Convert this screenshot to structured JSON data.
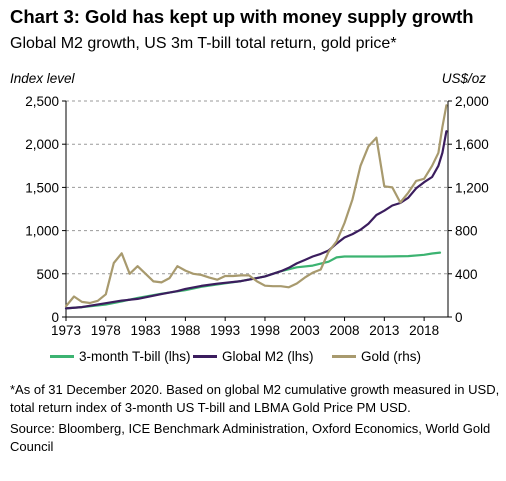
{
  "header": {
    "title": "Chart 3: Gold has kept up with money supply growth",
    "subtitle": "Global M2 growth, US 3m T-bill total return, gold price*"
  },
  "footer": {
    "footnote": "*As of 31 December 2020. Based on global M2 cumulative growth measured in USD, total return index of 3-month US T-bill and LBMA Gold Price PM USD.",
    "source": "Source: Bloomberg, ICE Benchmark Administration, Oxford Economics, World Gold Council"
  },
  "chart_data": {
    "type": "line",
    "title": "Chart 3: Gold has kept up with money supply growth",
    "subtitle": "Global M2 growth, US 3m T-bill total return, gold price*",
    "ylabel": "Index level",
    "y2label": "US$/oz",
    "xlim": [
      1973,
      2021
    ],
    "ylim": [
      0,
      2500
    ],
    "y2lim": [
      0,
      2000
    ],
    "x_ticks": [
      1973,
      1978,
      1983,
      1988,
      1993,
      1998,
      2003,
      2008,
      2013,
      2018
    ],
    "x_tick_labels": [
      "1973",
      "1978",
      "1983",
      "1988",
      "1993",
      "1998",
      "2003",
      "2008",
      "2013",
      "2018"
    ],
    "y_ticks": [
      0,
      500,
      1000,
      1500,
      2000,
      2500
    ],
    "y_tick_labels": [
      "0",
      "500",
      "1,000",
      "1,500",
      "2,000",
      "2,500"
    ],
    "y2_ticks": [
      0,
      400,
      800,
      1200,
      1600,
      2000
    ],
    "y2_tick_labels": [
      "0",
      "400",
      "800",
      "1,200",
      "1,600",
      "2,000"
    ],
    "grid": "horizontal dashed",
    "legend": "bottom",
    "series": [
      {
        "name": "3-month T-bill (lhs)",
        "axis": "left",
        "color": "#3cb371",
        "points": [
          [
            1973,
            100
          ],
          [
            1975,
            115
          ],
          [
            1978,
            145
          ],
          [
            1980,
            180
          ],
          [
            1982,
            220
          ],
          [
            1985,
            270
          ],
          [
            1988,
            310
          ],
          [
            1990,
            350
          ],
          [
            1993,
            390
          ],
          [
            1995,
            415
          ],
          [
            1998,
            470
          ],
          [
            2000,
            530
          ],
          [
            2002,
            575
          ],
          [
            2004,
            595
          ],
          [
            2006,
            640
          ],
          [
            2007,
            690
          ],
          [
            2008,
            700
          ],
          [
            2010,
            700
          ],
          [
            2013,
            700
          ],
          [
            2016,
            705
          ],
          [
            2018,
            720
          ],
          [
            2019,
            735
          ],
          [
            2020,
            745
          ]
        ]
      },
      {
        "name": "Global M2 (lhs)",
        "axis": "left",
        "color": "#3b1d5e",
        "points": [
          [
            1973,
            100
          ],
          [
            1975,
            115
          ],
          [
            1978,
            160
          ],
          [
            1980,
            190
          ],
          [
            1982,
            210
          ],
          [
            1985,
            265
          ],
          [
            1987,
            300
          ],
          [
            1988,
            325
          ],
          [
            1990,
            360
          ],
          [
            1992,
            385
          ],
          [
            1995,
            415
          ],
          [
            1997,
            450
          ],
          [
            1998,
            470
          ],
          [
            2000,
            530
          ],
          [
            2001,
            570
          ],
          [
            2002,
            620
          ],
          [
            2003,
            660
          ],
          [
            2004,
            700
          ],
          [
            2005,
            730
          ],
          [
            2006,
            770
          ],
          [
            2007,
            850
          ],
          [
            2008,
            920
          ],
          [
            2009,
            960
          ],
          [
            2010,
            1010
          ],
          [
            2011,
            1080
          ],
          [
            2012,
            1180
          ],
          [
            2013,
            1230
          ],
          [
            2014,
            1290
          ],
          [
            2015,
            1320
          ],
          [
            2016,
            1380
          ],
          [
            2017,
            1490
          ],
          [
            2018,
            1560
          ],
          [
            2019,
            1620
          ],
          [
            2019.8,
            1750
          ],
          [
            2020.3,
            1900
          ],
          [
            2020.8,
            2150
          ]
        ]
      },
      {
        "name": "Gold (rhs)",
        "axis": "right",
        "color": "#a89a6e",
        "points": [
          [
            1973,
            100
          ],
          [
            1974,
            190
          ],
          [
            1975,
            140
          ],
          [
            1976,
            130
          ],
          [
            1977,
            150
          ],
          [
            1978,
            210
          ],
          [
            1979,
            500
          ],
          [
            1980,
            590
          ],
          [
            1981,
            400
          ],
          [
            1982,
            470
          ],
          [
            1983,
            400
          ],
          [
            1984,
            330
          ],
          [
            1985,
            320
          ],
          [
            1986,
            360
          ],
          [
            1987,
            470
          ],
          [
            1988,
            430
          ],
          [
            1989,
            400
          ],
          [
            1990,
            390
          ],
          [
            1991,
            365
          ],
          [
            1992,
            345
          ],
          [
            1993,
            380
          ],
          [
            1994,
            380
          ],
          [
            1995,
            385
          ],
          [
            1996,
            385
          ],
          [
            1997,
            330
          ],
          [
            1998,
            290
          ],
          [
            1999,
            285
          ],
          [
            2000,
            285
          ],
          [
            2001,
            275
          ],
          [
            2002,
            310
          ],
          [
            2003,
            365
          ],
          [
            2004,
            410
          ],
          [
            2005,
            440
          ],
          [
            2006,
            605
          ],
          [
            2007,
            700
          ],
          [
            2008,
            870
          ],
          [
            2009,
            1090
          ],
          [
            2010,
            1400
          ],
          [
            2011,
            1580
          ],
          [
            2012,
            1660
          ],
          [
            2013,
            1210
          ],
          [
            2014,
            1200
          ],
          [
            2015,
            1060
          ],
          [
            2016,
            1150
          ],
          [
            2017,
            1260
          ],
          [
            2018,
            1280
          ],
          [
            2019,
            1400
          ],
          [
            2019.8,
            1520
          ],
          [
            2020.3,
            1760
          ],
          [
            2020.8,
            1960
          ]
        ]
      }
    ]
  }
}
